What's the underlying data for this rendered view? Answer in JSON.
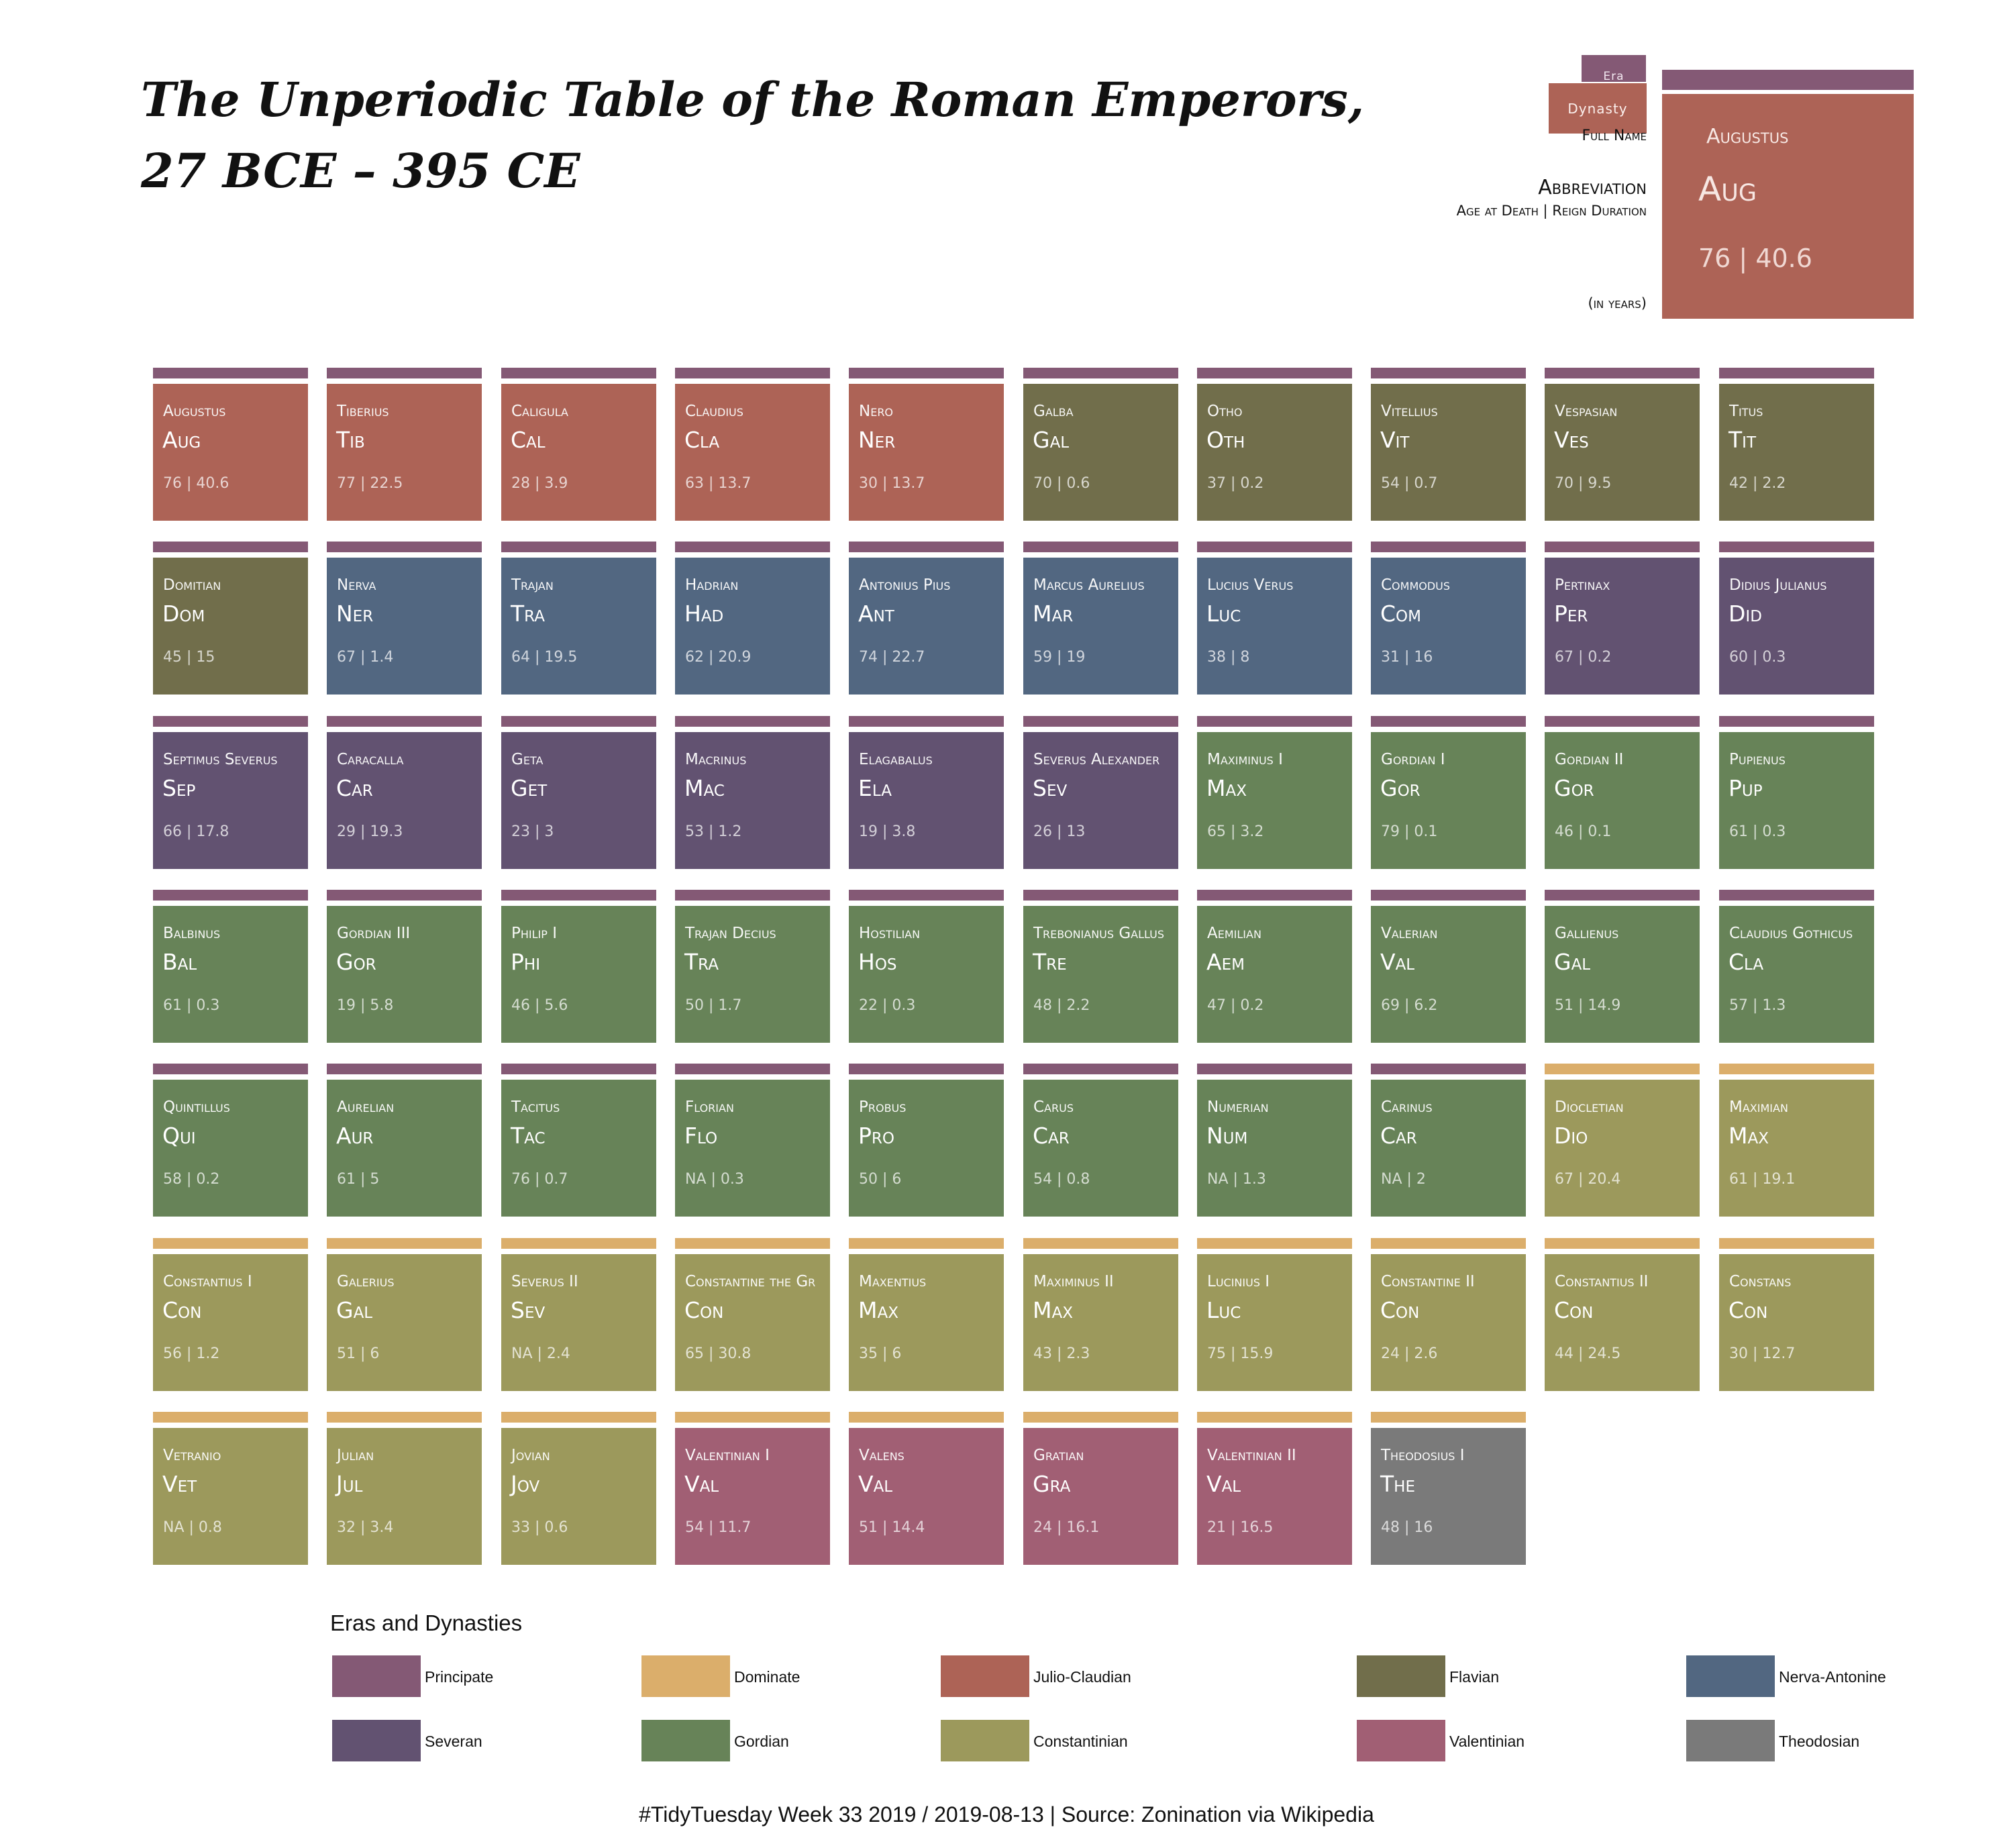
{
  "title_lines": [
    "The Unperiodic Table of the Roman Emperors,",
    "27 BCE – 395 CE"
  ],
  "key": {
    "era_label": "Era",
    "dynasty_label": "Dynasty",
    "full_name_label": "Full Name",
    "abbreviation_label": "Abbreviation",
    "age_reign_label": "Age at Death | Reign Duration",
    "units_label": "(in years)",
    "example_name": "Augustus",
    "example_abbr": "Aug",
    "example_nums": "76 | 40.6"
  },
  "colors": {
    "Principate": "#845975",
    "Dominate": "#dbae6b",
    "Julio-Claudian": "#ad6356",
    "Flavian": "#716e4b",
    "Nerva-Antonine": "#526781",
    "Severan": "#625271",
    "Gordian": "#678358",
    "Constantinian": "#9c995c",
    "Valentinian": "#a15f74",
    "Theodosian": "#7a7a7a"
  },
  "chart_data": {
    "type": "table",
    "columns": [
      "name",
      "abbr",
      "age_at_death",
      "reign_years",
      "era",
      "dynasty"
    ],
    "emperors": [
      {
        "name": "Augustus",
        "abbr": "Aug",
        "age": "76",
        "reign": "40.6",
        "era": "Principate",
        "dynasty": "Julio-Claudian"
      },
      {
        "name": "Tiberius",
        "abbr": "Tib",
        "age": "77",
        "reign": "22.5",
        "era": "Principate",
        "dynasty": "Julio-Claudian"
      },
      {
        "name": "Caligula",
        "abbr": "Cal",
        "age": "28",
        "reign": "3.9",
        "era": "Principate",
        "dynasty": "Julio-Claudian"
      },
      {
        "name": "Claudius",
        "abbr": "Cla",
        "age": "63",
        "reign": "13.7",
        "era": "Principate",
        "dynasty": "Julio-Claudian"
      },
      {
        "name": "Nero",
        "abbr": "Ner",
        "age": "30",
        "reign": "13.7",
        "era": "Principate",
        "dynasty": "Julio-Claudian"
      },
      {
        "name": "Galba",
        "abbr": "Gal",
        "age": "70",
        "reign": "0.6",
        "era": "Principate",
        "dynasty": "Flavian"
      },
      {
        "name": "Otho",
        "abbr": "Oth",
        "age": "37",
        "reign": "0.2",
        "era": "Principate",
        "dynasty": "Flavian"
      },
      {
        "name": "Vitellius",
        "abbr": "Vit",
        "age": "54",
        "reign": "0.7",
        "era": "Principate",
        "dynasty": "Flavian"
      },
      {
        "name": "Vespasian",
        "abbr": "Ves",
        "age": "70",
        "reign": "9.5",
        "era": "Principate",
        "dynasty": "Flavian"
      },
      {
        "name": "Titus",
        "abbr": "Tit",
        "age": "42",
        "reign": "2.2",
        "era": "Principate",
        "dynasty": "Flavian"
      },
      {
        "name": "Domitian",
        "abbr": "Dom",
        "age": "45",
        "reign": "15",
        "era": "Principate",
        "dynasty": "Flavian"
      },
      {
        "name": "Nerva",
        "abbr": "Ner",
        "age": "67",
        "reign": "1.4",
        "era": "Principate",
        "dynasty": "Nerva-Antonine"
      },
      {
        "name": "Trajan",
        "abbr": "Tra",
        "age": "64",
        "reign": "19.5",
        "era": "Principate",
        "dynasty": "Nerva-Antonine"
      },
      {
        "name": "Hadrian",
        "abbr": "Had",
        "age": "62",
        "reign": "20.9",
        "era": "Principate",
        "dynasty": "Nerva-Antonine"
      },
      {
        "name": "Antonius Pius",
        "abbr": "Ant",
        "age": "74",
        "reign": "22.7",
        "era": "Principate",
        "dynasty": "Nerva-Antonine"
      },
      {
        "name": "Marcus Aurelius",
        "abbr": "Mar",
        "age": "59",
        "reign": "19",
        "era": "Principate",
        "dynasty": "Nerva-Antonine"
      },
      {
        "name": "Lucius Verus",
        "abbr": "Luc",
        "age": "38",
        "reign": "8",
        "era": "Principate",
        "dynasty": "Nerva-Antonine"
      },
      {
        "name": "Commodus",
        "abbr": "Com",
        "age": "31",
        "reign": "16",
        "era": "Principate",
        "dynasty": "Nerva-Antonine"
      },
      {
        "name": "Pertinax",
        "abbr": "Per",
        "age": "67",
        "reign": "0.2",
        "era": "Principate",
        "dynasty": "Severan"
      },
      {
        "name": "Didius Julianus",
        "abbr": "Did",
        "age": "60",
        "reign": "0.3",
        "era": "Principate",
        "dynasty": "Severan"
      },
      {
        "name": "Septimus Severus",
        "abbr": "Sep",
        "age": "66",
        "reign": "17.8",
        "era": "Principate",
        "dynasty": "Severan"
      },
      {
        "name": "Caracalla",
        "abbr": "Car",
        "age": "29",
        "reign": "19.3",
        "era": "Principate",
        "dynasty": "Severan"
      },
      {
        "name": "Geta",
        "abbr": "Get",
        "age": "23",
        "reign": "3",
        "era": "Principate",
        "dynasty": "Severan"
      },
      {
        "name": "Macrinus",
        "abbr": "Mac",
        "age": "53",
        "reign": "1.2",
        "era": "Principate",
        "dynasty": "Severan"
      },
      {
        "name": "Elagabalus",
        "abbr": "Ela",
        "age": "19",
        "reign": "3.8",
        "era": "Principate",
        "dynasty": "Severan"
      },
      {
        "name": "Severus Alexander",
        "abbr": "Sev",
        "age": "26",
        "reign": "13",
        "era": "Principate",
        "dynasty": "Severan"
      },
      {
        "name": "Maximinus I",
        "abbr": "Max",
        "age": "65",
        "reign": "3.2",
        "era": "Principate",
        "dynasty": "Gordian"
      },
      {
        "name": "Gordian I",
        "abbr": "Gor",
        "age": "79",
        "reign": "0.1",
        "era": "Principate",
        "dynasty": "Gordian"
      },
      {
        "name": "Gordian II",
        "abbr": "Gor",
        "age": "46",
        "reign": "0.1",
        "era": "Principate",
        "dynasty": "Gordian"
      },
      {
        "name": "Pupienus",
        "abbr": "Pup",
        "age": "61",
        "reign": "0.3",
        "era": "Principate",
        "dynasty": "Gordian"
      },
      {
        "name": "Balbinus",
        "abbr": "Bal",
        "age": "61",
        "reign": "0.3",
        "era": "Principate",
        "dynasty": "Gordian"
      },
      {
        "name": "Gordian III",
        "abbr": "Gor",
        "age": "19",
        "reign": "5.8",
        "era": "Principate",
        "dynasty": "Gordian"
      },
      {
        "name": "Philip I",
        "abbr": "Phi",
        "age": "46",
        "reign": "5.6",
        "era": "Principate",
        "dynasty": "Gordian"
      },
      {
        "name": "Trajan Decius",
        "abbr": "Tra",
        "age": "50",
        "reign": "1.7",
        "era": "Principate",
        "dynasty": "Gordian"
      },
      {
        "name": "Hostilian",
        "abbr": "Hos",
        "age": "22",
        "reign": "0.3",
        "era": "Principate",
        "dynasty": "Gordian"
      },
      {
        "name": "Trebonianus Gallus",
        "abbr": "Tre",
        "age": "48",
        "reign": "2.2",
        "era": "Principate",
        "dynasty": "Gordian"
      },
      {
        "name": "Aemilian",
        "abbr": "Aem",
        "age": "47",
        "reign": "0.2",
        "era": "Principate",
        "dynasty": "Gordian"
      },
      {
        "name": "Valerian",
        "abbr": "Val",
        "age": "69",
        "reign": "6.2",
        "era": "Principate",
        "dynasty": "Gordian"
      },
      {
        "name": "Gallienus",
        "abbr": "Gal",
        "age": "51",
        "reign": "14.9",
        "era": "Principate",
        "dynasty": "Gordian"
      },
      {
        "name": "Claudius Gothicus",
        "abbr": "Cla",
        "age": "57",
        "reign": "1.3",
        "era": "Principate",
        "dynasty": "Gordian"
      },
      {
        "name": "Quintillus",
        "abbr": "Qui",
        "age": "58",
        "reign": "0.2",
        "era": "Principate",
        "dynasty": "Gordian"
      },
      {
        "name": "Aurelian",
        "abbr": "Aur",
        "age": "61",
        "reign": "5",
        "era": "Principate",
        "dynasty": "Gordian"
      },
      {
        "name": "Tacitus",
        "abbr": "Tac",
        "age": "76",
        "reign": "0.7",
        "era": "Principate",
        "dynasty": "Gordian"
      },
      {
        "name": "Florian",
        "abbr": "Flo",
        "age": "NA",
        "reign": "0.3",
        "era": "Principate",
        "dynasty": "Gordian"
      },
      {
        "name": "Probus",
        "abbr": "Pro",
        "age": "50",
        "reign": "6",
        "era": "Principate",
        "dynasty": "Gordian"
      },
      {
        "name": "Carus",
        "abbr": "Car",
        "age": "54",
        "reign": "0.8",
        "era": "Principate",
        "dynasty": "Gordian"
      },
      {
        "name": "Numerian",
        "abbr": "Num",
        "age": "NA",
        "reign": "1.3",
        "era": "Principate",
        "dynasty": "Gordian"
      },
      {
        "name": "Carinus",
        "abbr": "Car",
        "age": "NA",
        "reign": "2",
        "era": "Principate",
        "dynasty": "Gordian"
      },
      {
        "name": "Diocletian",
        "abbr": "Dio",
        "age": "67",
        "reign": "20.4",
        "era": "Dominate",
        "dynasty": "Constantinian"
      },
      {
        "name": "Maximian",
        "abbr": "Max",
        "age": "61",
        "reign": "19.1",
        "era": "Dominate",
        "dynasty": "Constantinian"
      },
      {
        "name": "Constantius I",
        "abbr": "Con",
        "age": "56",
        "reign": "1.2",
        "era": "Dominate",
        "dynasty": "Constantinian"
      },
      {
        "name": "Galerius",
        "abbr": "Gal",
        "age": "51",
        "reign": "6",
        "era": "Dominate",
        "dynasty": "Constantinian"
      },
      {
        "name": "Severus II",
        "abbr": "Sev",
        "age": "NA",
        "reign": "2.4",
        "era": "Dominate",
        "dynasty": "Constantinian"
      },
      {
        "name": "Constantine the Gr",
        "abbr": "Con",
        "age": "65",
        "reign": "30.8",
        "era": "Dominate",
        "dynasty": "Constantinian"
      },
      {
        "name": "Maxentius",
        "abbr": "Max",
        "age": "35",
        "reign": "6",
        "era": "Dominate",
        "dynasty": "Constantinian"
      },
      {
        "name": "Maximinus II",
        "abbr": "Max",
        "age": "43",
        "reign": "2.3",
        "era": "Dominate",
        "dynasty": "Constantinian"
      },
      {
        "name": "Lucinius I",
        "abbr": "Luc",
        "age": "75",
        "reign": "15.9",
        "era": "Dominate",
        "dynasty": "Constantinian"
      },
      {
        "name": "Constantine II",
        "abbr": "Con",
        "age": "24",
        "reign": "2.6",
        "era": "Dominate",
        "dynasty": "Constantinian"
      },
      {
        "name": "Constantius II",
        "abbr": "Con",
        "age": "44",
        "reign": "24.5",
        "era": "Dominate",
        "dynasty": "Constantinian"
      },
      {
        "name": "Constans",
        "abbr": "Con",
        "age": "30",
        "reign": "12.7",
        "era": "Dominate",
        "dynasty": "Constantinian"
      },
      {
        "name": "Vetranio",
        "abbr": "Vet",
        "age": "NA",
        "reign": "0.8",
        "era": "Dominate",
        "dynasty": "Constantinian"
      },
      {
        "name": "Julian",
        "abbr": "Jul",
        "age": "32",
        "reign": "3.4",
        "era": "Dominate",
        "dynasty": "Constantinian"
      },
      {
        "name": "Jovian",
        "abbr": "Jov",
        "age": "33",
        "reign": "0.6",
        "era": "Dominate",
        "dynasty": "Constantinian"
      },
      {
        "name": "Valentinian I",
        "abbr": "Val",
        "age": "54",
        "reign": "11.7",
        "era": "Dominate",
        "dynasty": "Valentinian"
      },
      {
        "name": "Valens",
        "abbr": "Val",
        "age": "51",
        "reign": "14.4",
        "era": "Dominate",
        "dynasty": "Valentinian"
      },
      {
        "name": "Gratian",
        "abbr": "Gra",
        "age": "24",
        "reign": "16.1",
        "era": "Dominate",
        "dynasty": "Valentinian"
      },
      {
        "name": "Valentinian II",
        "abbr": "Val",
        "age": "21",
        "reign": "16.5",
        "era": "Dominate",
        "dynasty": "Valentinian"
      },
      {
        "name": "Theodosius I",
        "abbr": "The",
        "age": "48",
        "reign": "16",
        "era": "Dominate",
        "dynasty": "Theodosian"
      }
    ]
  },
  "legend": {
    "title": "Eras and Dynasties",
    "items": [
      "Principate",
      "Dominate",
      "Julio-Claudian",
      "Flavian",
      "Nerva-Antonine",
      "Severan",
      "Gordian",
      "Constantinian",
      "Valentinian",
      "Theodosian"
    ]
  },
  "caption": "#TidyTuesday Week 33 2019 / 2019-08-13 | Source: Zonination via Wikipedia"
}
